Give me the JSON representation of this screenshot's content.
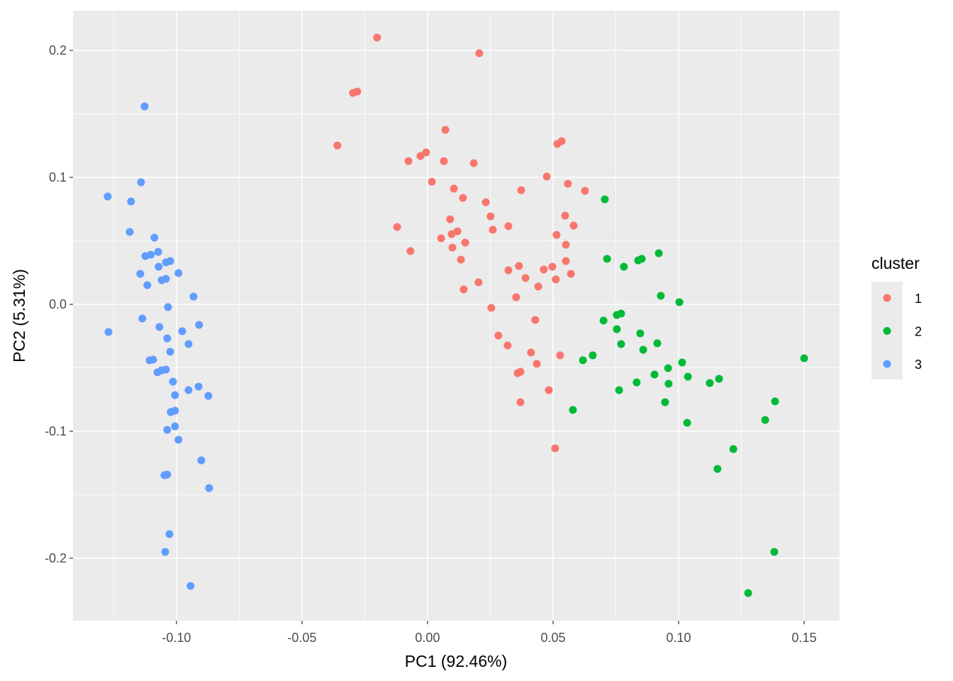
{
  "chart_data": {
    "type": "scatter",
    "title": "",
    "xlabel": "PC1 (92.46%)",
    "ylabel": "PC2 (5.31%)",
    "xlim": [
      -0.1412,
      0.1641
    ],
    "ylim": [
      -0.2492,
      0.2313
    ],
    "xticks": [
      -0.1,
      -0.05,
      0.0,
      0.05,
      0.1,
      0.15
    ],
    "xtick_labels": [
      "-0.10",
      "-0.05",
      "0.00",
      "0.05",
      "0.10",
      "0.15"
    ],
    "yticks": [
      -0.2,
      -0.1,
      0.0,
      0.1,
      0.2
    ],
    "ytick_labels": [
      "-0.2",
      "-0.1",
      "0.0",
      "0.1",
      "0.2"
    ],
    "grid": true,
    "legend": {
      "title": "cluster",
      "placement": "right"
    },
    "series": [
      {
        "name": "1",
        "color": "#F8766D",
        "points": [
          [
            -0.0201,
            0.2101
          ],
          [
            0.0206,
            0.1978
          ],
          [
            -0.0297,
            0.1665
          ],
          [
            -0.028,
            0.1676
          ],
          [
            -0.0359,
            0.1251
          ],
          [
            0.0071,
            0.1374
          ],
          [
            -0.0006,
            0.1196
          ],
          [
            -0.0028,
            0.1168
          ],
          [
            -0.0076,
            0.1128
          ],
          [
            0.0065,
            0.1128
          ],
          [
            0.0184,
            0.1112
          ],
          [
            0.0534,
            0.1285
          ],
          [
            0.0517,
            0.1263
          ],
          [
            0.0475,
            0.1006
          ],
          [
            0.0017,
            0.0966
          ],
          [
            0.0105,
            0.0911
          ],
          [
            0.0373,
            0.0899
          ],
          [
            0.0559,
            0.095
          ],
          [
            0.0627,
            0.0894
          ],
          [
            0.0141,
            0.0838
          ],
          [
            0.0232,
            0.0804
          ],
          [
            0.0251,
            0.0693
          ],
          [
            0.009,
            0.067
          ],
          [
            0.0548,
            0.0698
          ],
          [
            -0.0121,
            0.0609
          ],
          [
            0.0322,
            0.0615
          ],
          [
            0.0582,
            0.062
          ],
          [
            0.026,
            0.0587
          ],
          [
            0.0119,
            0.0575
          ],
          [
            0.0096,
            0.0553
          ],
          [
            0.0054,
            0.052
          ],
          [
            0.0514,
            0.0547
          ],
          [
            0.015,
            0.0486
          ],
          [
            0.0099,
            0.0447
          ],
          [
            0.0551,
            0.0469
          ],
          [
            -0.0068,
            0.0419
          ],
          [
            0.0133,
            0.0352
          ],
          [
            0.0551,
            0.0341
          ],
          [
            0.0364,
            0.0302
          ],
          [
            0.0322,
            0.0268
          ],
          [
            0.0497,
            0.0296
          ],
          [
            0.0463,
            0.0274
          ],
          [
            0.0571,
            0.024
          ],
          [
            0.039,
            0.0207
          ],
          [
            0.0511,
            0.0196
          ],
          [
            0.0203,
            0.0173
          ],
          [
            0.0441,
            0.014
          ],
          [
            0.0144,
            0.0117
          ],
          [
            0.0353,
            0.0056
          ],
          [
            0.0254,
            -0.0028
          ],
          [
            0.0429,
            -0.0123
          ],
          [
            0.0282,
            -0.0246
          ],
          [
            0.0319,
            -0.0324
          ],
          [
            0.0412,
            -0.038
          ],
          [
            0.0528,
            -0.0402
          ],
          [
            0.0435,
            -0.0469
          ],
          [
            0.037,
            -0.0531
          ],
          [
            0.0359,
            -0.0542
          ],
          [
            0.0483,
            -0.0676
          ],
          [
            0.037,
            -0.0771
          ],
          [
            0.0508,
            -0.1134
          ]
        ]
      },
      {
        "name": "2",
        "color": "#00BA38",
        "points": [
          [
            0.0706,
            0.0827
          ],
          [
            0.0715,
            0.0358
          ],
          [
            0.0921,
            0.0402
          ],
          [
            0.0853,
            0.0358
          ],
          [
            0.0839,
            0.0346
          ],
          [
            0.0782,
            0.0296
          ],
          [
            0.0929,
            0.0067
          ],
          [
            0.1003,
            0.0017
          ],
          [
            0.0771,
            -0.0073
          ],
          [
            0.0754,
            -0.0084
          ],
          [
            0.0701,
            -0.0128
          ],
          [
            0.0754,
            -0.0196
          ],
          [
            0.0847,
            -0.0229
          ],
          [
            0.0771,
            -0.0313
          ],
          [
            0.0915,
            -0.0307
          ],
          [
            0.0859,
            -0.0358
          ],
          [
            0.0658,
            -0.0402
          ],
          [
            0.0619,
            -0.0441
          ],
          [
            0.1014,
            -0.0458
          ],
          [
            0.15,
            -0.0425
          ],
          [
            0.0958,
            -0.0503
          ],
          [
            0.0904,
            -0.0553
          ],
          [
            0.1037,
            -0.057
          ],
          [
            0.1161,
            -0.0587
          ],
          [
            0.1124,
            -0.062
          ],
          [
            0.0833,
            -0.0615
          ],
          [
            0.096,
            -0.0626
          ],
          [
            0.0763,
            -0.0676
          ],
          [
            0.1384,
            -0.0765
          ],
          [
            0.0946,
            -0.0771
          ],
          [
            0.0579,
            -0.0832
          ],
          [
            0.1345,
            -0.0911
          ],
          [
            0.1034,
            -0.0933
          ],
          [
            0.1218,
            -0.114
          ],
          [
            0.1155,
            -0.1296
          ],
          [
            0.1381,
            -0.195
          ],
          [
            0.1277,
            -0.2274
          ]
        ]
      },
      {
        "name": "3",
        "color": "#619CFF",
        "points": [
          [
            -0.1127,
            0.1559
          ],
          [
            -0.1141,
            0.0961
          ],
          [
            -0.1274,
            0.0849
          ],
          [
            -0.1181,
            0.081
          ],
          [
            -0.1186,
            0.057
          ],
          [
            -0.1088,
            0.0525
          ],
          [
            -0.1073,
            0.0413
          ],
          [
            -0.1124,
            0.038
          ],
          [
            -0.1102,
            0.0391
          ],
          [
            -0.1025,
            0.0341
          ],
          [
            -0.1042,
            0.033
          ],
          [
            -0.1071,
            0.0296
          ],
          [
            -0.1144,
            0.024
          ],
          [
            -0.0992,
            0.0246
          ],
          [
            -0.1042,
            0.0201
          ],
          [
            -0.1059,
            0.019
          ],
          [
            -0.1116,
            0.0151
          ],
          [
            -0.0932,
            0.0061
          ],
          [
            -0.1034,
            -0.0022
          ],
          [
            -0.1136,
            -0.0112
          ],
          [
            -0.1271,
            -0.0218
          ],
          [
            -0.1068,
            -0.0179
          ],
          [
            -0.0977,
            -0.0212
          ],
          [
            -0.091,
            -0.0162
          ],
          [
            -0.1037,
            -0.0268
          ],
          [
            -0.0952,
            -0.0313
          ],
          [
            -0.1025,
            -0.0374
          ],
          [
            -0.1093,
            -0.0436
          ],
          [
            -0.1107,
            -0.0441
          ],
          [
            -0.1042,
            -0.0514
          ],
          [
            -0.1059,
            -0.052
          ],
          [
            -0.1076,
            -0.0536
          ],
          [
            -0.1014,
            -0.0609
          ],
          [
            -0.0912,
            -0.0648
          ],
          [
            -0.0952,
            -0.0676
          ],
          [
            -0.0873,
            -0.0721
          ],
          [
            -0.1006,
            -0.0715
          ],
          [
            -0.1006,
            -0.0838
          ],
          [
            -0.1023,
            -0.0849
          ],
          [
            -0.1006,
            -0.0961
          ],
          [
            -0.1037,
            -0.0989
          ],
          [
            -0.0992,
            -0.1067
          ],
          [
            -0.0901,
            -0.1229
          ],
          [
            -0.1037,
            -0.1341
          ],
          [
            -0.1048,
            -0.1346
          ],
          [
            -0.087,
            -0.1447
          ],
          [
            -0.1028,
            -0.181
          ],
          [
            -0.1045,
            -0.195
          ],
          [
            -0.0944,
            -0.2218
          ]
        ]
      }
    ]
  }
}
